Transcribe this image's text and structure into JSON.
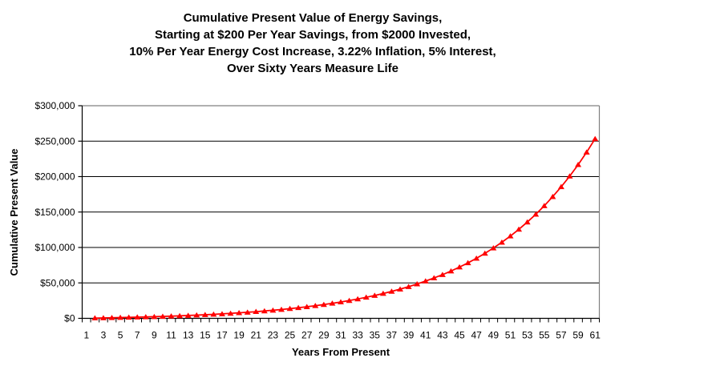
{
  "chart_data": {
    "type": "line",
    "title_lines": [
      "Cumulative Present Value of Energy Savings,",
      "Starting at $200 Per Year Savings,  from $2000 Invested,",
      "10% Per Year Energy Cost Increase, 3.22% Inflation, 5% Interest,",
      "Over Sixty Years Measure Life"
    ],
    "xlabel": "Years From Present",
    "ylabel": "Cumulative Present Value",
    "grid": "horizontal-black",
    "legend": "none",
    "plot_border_color": "#808080",
    "axis_color": "#000000",
    "x_axis": {
      "categories_count": 61,
      "first_label": 1,
      "last_label": 61,
      "label_step": 2,
      "tick_labels": [
        "1",
        "3",
        "5",
        "7",
        "9",
        "11",
        "13",
        "15",
        "17",
        "19",
        "21",
        "23",
        "25",
        "27",
        "29",
        "31",
        "33",
        "35",
        "37",
        "39",
        "41",
        "43",
        "45",
        "47",
        "49",
        "51",
        "53",
        "55",
        "57",
        "59",
        "61"
      ]
    },
    "y_axis": {
      "min": 0,
      "max": 300000,
      "tick_step": 50000,
      "ticks": [
        {
          "value": 0,
          "label": "$0"
        },
        {
          "value": 50000,
          "label": "$50,000"
        },
        {
          "value": 100000,
          "label": "$100,000"
        },
        {
          "value": 150000,
          "label": "$150,000"
        },
        {
          "value": 200000,
          "label": "$200,000"
        },
        {
          "value": 250000,
          "label": "$250,000"
        },
        {
          "value": 300000,
          "label": "$300,000"
        }
      ]
    },
    "series": [
      {
        "name": "cumulative-present-value",
        "color": "#FF0000",
        "marker": "triangle",
        "x": [
          2,
          3,
          4,
          5,
          6,
          7,
          8,
          9,
          10,
          11,
          12,
          13,
          14,
          15,
          16,
          17,
          18,
          19,
          20,
          21,
          22,
          23,
          24,
          25,
          26,
          27,
          28,
          29,
          30,
          31,
          32,
          33,
          34,
          35,
          36,
          37,
          38,
          39,
          40,
          41,
          42,
          43,
          44,
          45,
          46,
          47,
          48,
          49,
          50,
          51,
          52,
          53,
          54,
          55,
          56,
          57,
          58,
          59,
          60,
          61
        ],
        "values": [
          389,
          607,
          843,
          1097,
          1372,
          1669,
          1989,
          2335,
          2709,
          3113,
          3549,
          4020,
          4528,
          5077,
          5671,
          6311,
          7003,
          7751,
          8558,
          9429,
          10371,
          11387,
          12485,
          13671,
          14952,
          16335,
          17829,
          19442,
          21184,
          23066,
          25098,
          27293,
          29663,
          32224,
          34988,
          37974,
          41199,
          44682,
          48444,
          52507,
          56894,
          61633,
          66750,
          72277,
          78246,
          84693,
          91656,
          99175,
          107296,
          116067,
          125539,
          135769,
          146818,
          158750,
          171637,
          185555,
          200586,
          216820,
          234353,
          253288
        ]
      }
    ]
  }
}
